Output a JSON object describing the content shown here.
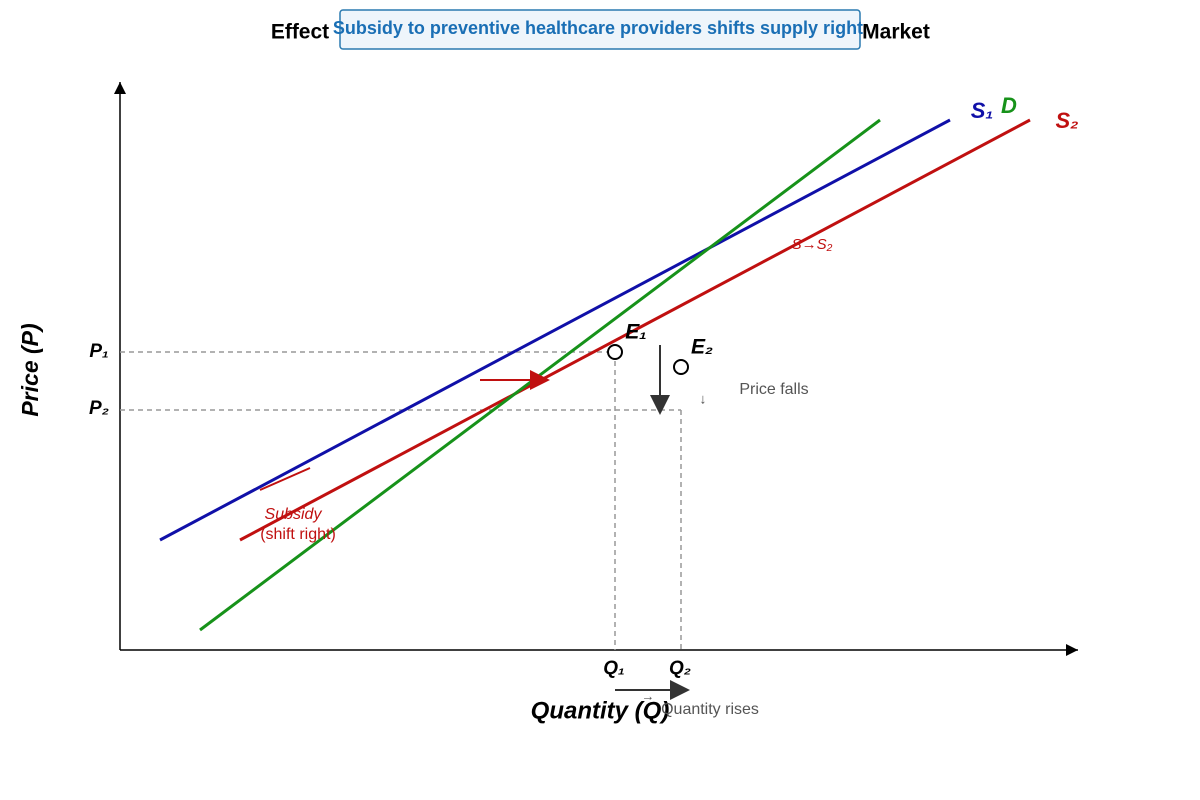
{
  "header": {
    "title_left": "Effect",
    "title_right": "Market",
    "callout": "Subsidy to preventive healthcare providers shifts supply right"
  },
  "axes": {
    "y_label": "Price (P)",
    "x_label": "Quantity (Q)"
  },
  "curves": {
    "s1": "S₁",
    "d": "D",
    "s2": "S₂",
    "shift": "S→S₂"
  },
  "equilibria": {
    "e1": "E₁",
    "e2": "E₂"
  },
  "levels": {
    "p1": "P₁",
    "p2": "P₂",
    "q1": "Q₁",
    "q2": "Q₂"
  },
  "annotations": {
    "price_falls": "Price falls",
    "down_arrow": "↓",
    "quantity_rises": "Quantity rises",
    "right_arrow": "→",
    "subsidy": "Subsidy",
    "shift_right": "(shift right)"
  }
}
